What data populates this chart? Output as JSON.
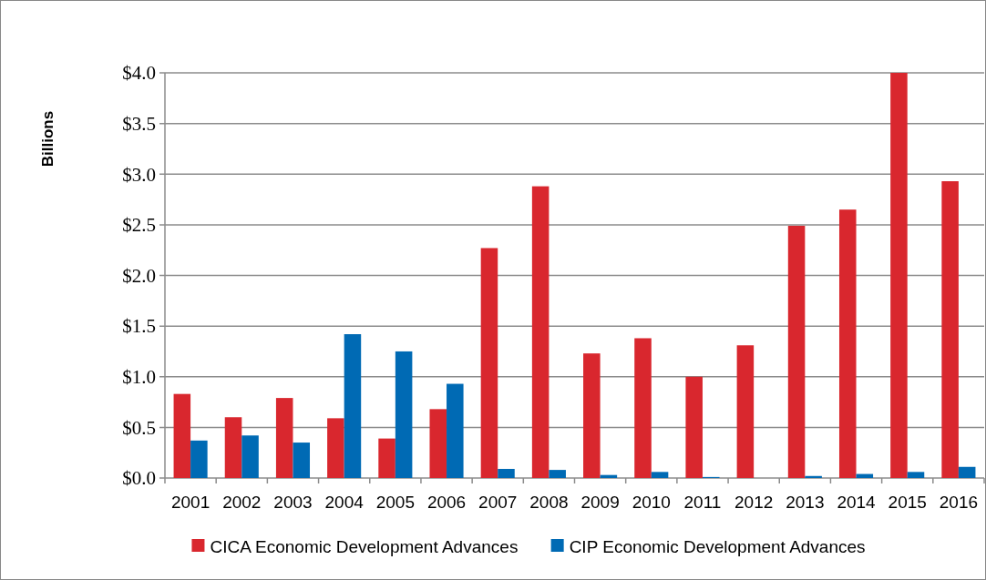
{
  "chart_data": {
    "type": "bar",
    "ylabel": "Billions",
    "categories": [
      "2001",
      "2002",
      "2003",
      "2004",
      "2005",
      "2006",
      "2007",
      "2008",
      "2009",
      "2010",
      "2011",
      "2012",
      "2013",
      "2014",
      "2015",
      "2016"
    ],
    "series": [
      {
        "name": "CICA Economic Development Advances",
        "color": "#d9272e",
        "values": [
          0.83,
          0.6,
          0.79,
          0.59,
          0.39,
          0.68,
          2.27,
          2.88,
          1.23,
          1.38,
          1.0,
          1.31,
          2.49,
          2.65,
          4.0,
          2.93
        ]
      },
      {
        "name": "CIP Economic Development Advances",
        "color": "#006ab4",
        "values": [
          0.37,
          0.42,
          0.35,
          1.42,
          1.25,
          0.93,
          0.09,
          0.08,
          0.03,
          0.06,
          0.01,
          0,
          0.02,
          0.04,
          0.06,
          0.11
        ]
      }
    ],
    "ylim": [
      0,
      4
    ],
    "yticks": [
      {
        "value": 0,
        "label": "$0.0"
      },
      {
        "value": 0.5,
        "label": "$0.5"
      },
      {
        "value": 1,
        "label": "$1.0"
      },
      {
        "value": 1.5,
        "label": "$1.5"
      },
      {
        "value": 2,
        "label": "$2.0"
      },
      {
        "value": 2.5,
        "label": "$2.5"
      },
      {
        "value": 3,
        "label": "$3.0"
      },
      {
        "value": 3.5,
        "label": "$3.5"
      },
      {
        "value": 4,
        "label": "$4.0"
      }
    ],
    "grid": "y",
    "legend": "bottom"
  }
}
